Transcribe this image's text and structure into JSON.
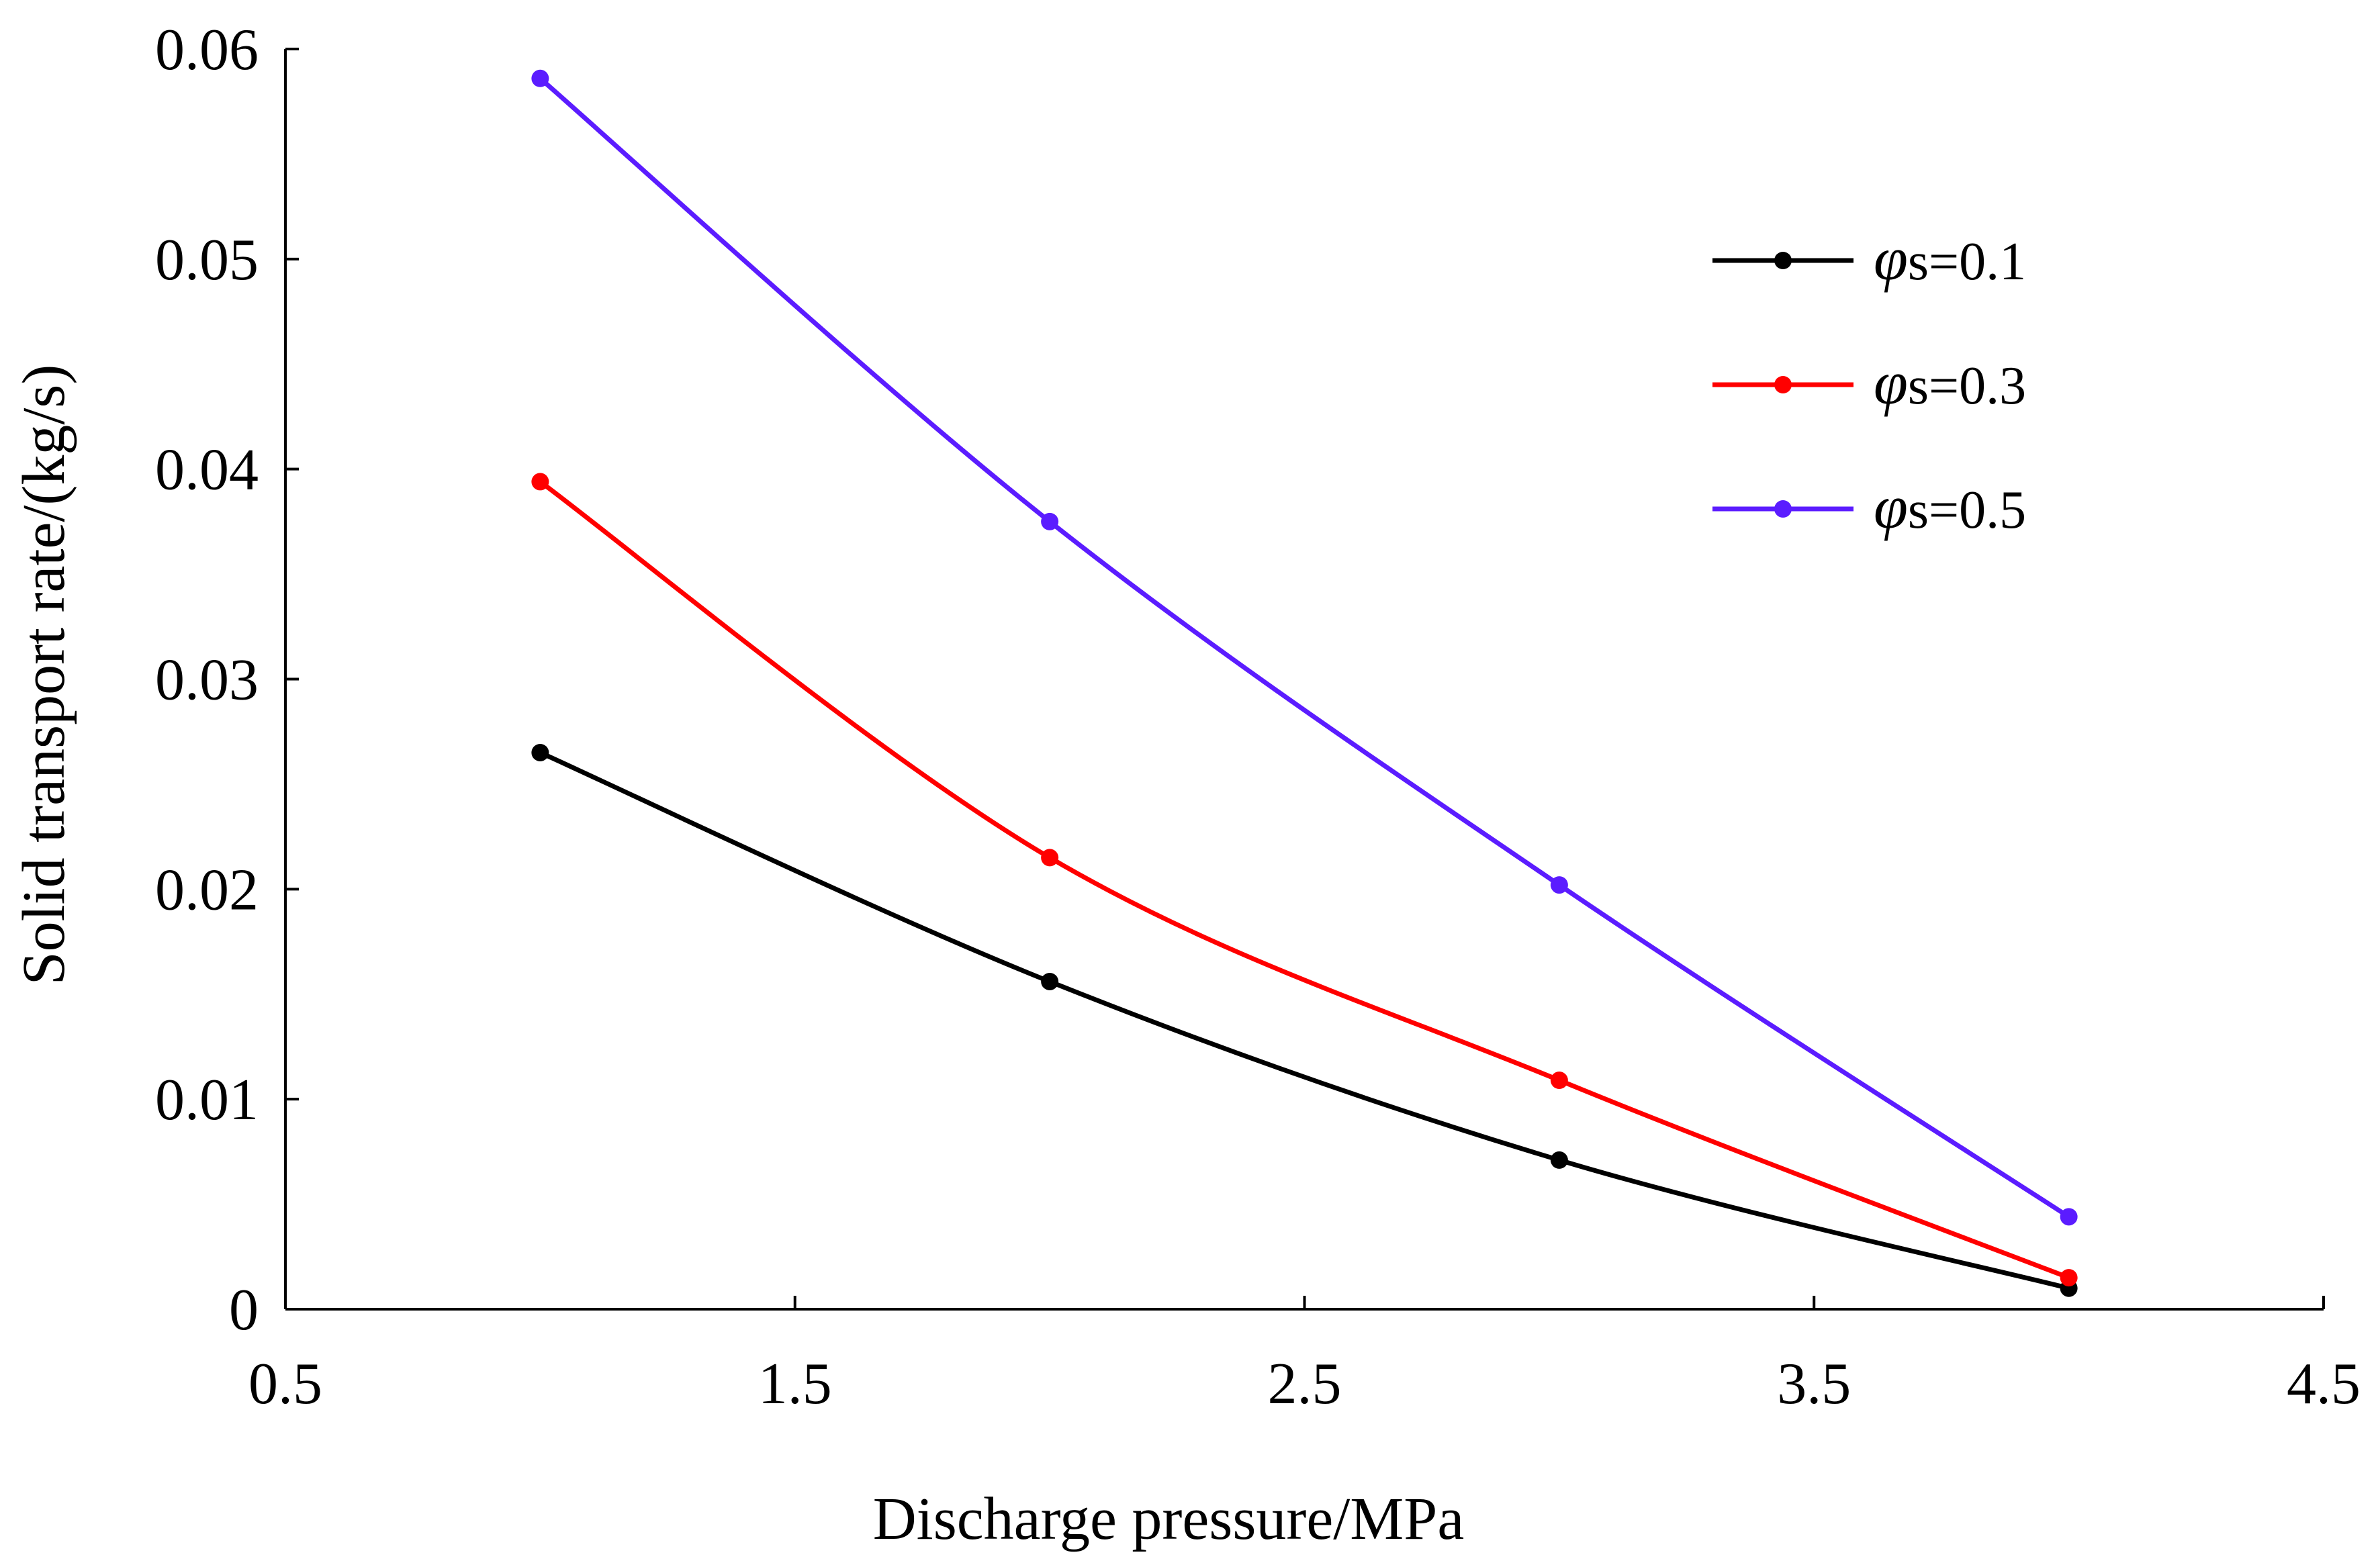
{
  "chart_data": {
    "type": "line",
    "title": "",
    "xlabel": "Discharge pressure/MPa",
    "ylabel": "Solid transport rate/(kg/s)",
    "xlim": [
      0.5,
      4.5
    ],
    "ylim": [
      0,
      0.06
    ],
    "xticks": [
      0.5,
      1.5,
      2.5,
      3.5,
      4.5
    ],
    "xtick_labels": [
      "0.5",
      "1.5",
      "2.5",
      "3.5",
      "4.5"
    ],
    "yticks": [
      0,
      0.01,
      0.02,
      0.03,
      0.04,
      0.05,
      0.06
    ],
    "ytick_labels": [
      "0",
      "0.01",
      "0.02",
      "0.03",
      "0.04",
      "0.05",
      "0.06"
    ],
    "grid": false,
    "legend_position": "top-right",
    "smooth": true,
    "x": [
      1,
      2,
      3,
      4
    ],
    "series": [
      {
        "name": "φs=0.1",
        "symbol": "φ",
        "label_suffix": "s=0.1",
        "color": "#000000",
        "values": [
          0.0265,
          0.0156,
          0.0071,
          0.001
        ]
      },
      {
        "name": "φs=0.3",
        "symbol": "φ",
        "label_suffix": "s=0.3",
        "color": "#ff0000",
        "values": [
          0.0394,
          0.0215,
          0.0109,
          0.0015
        ]
      },
      {
        "name": "φs=0.5",
        "symbol": "φ",
        "label_suffix": "s=0.5",
        "color": "#5b1cff",
        "values": [
          0.0586,
          0.0375,
          0.0202,
          0.0044
        ]
      }
    ]
  }
}
